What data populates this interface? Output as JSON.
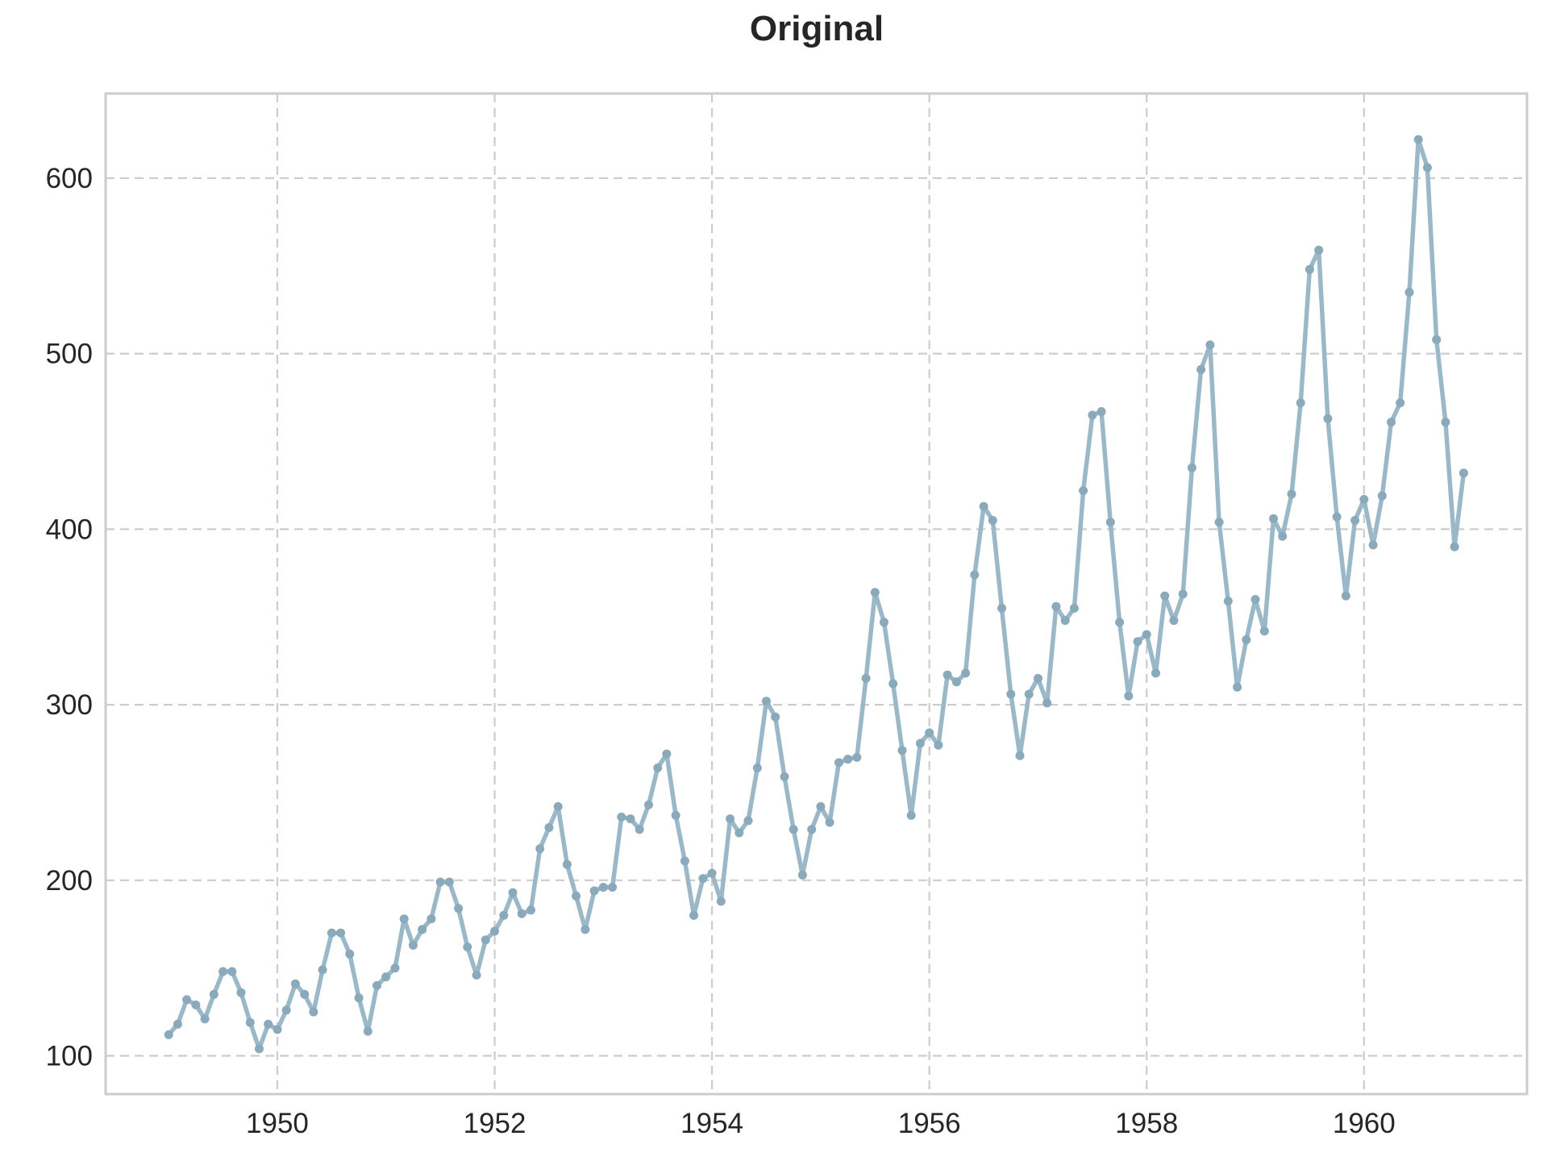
{
  "chart_data": {
    "type": "line",
    "title": "Original",
    "xlabel": "",
    "ylabel": "",
    "x_start": "1949-01",
    "x_frequency": "monthly",
    "xlim": [
      1948.42,
      1961.5
    ],
    "ylim": [
      78.2,
      648.2
    ],
    "x_ticks": [
      1950,
      1952,
      1954,
      1956,
      1958,
      1960
    ],
    "x_tick_labels": [
      "1950",
      "1952",
      "1954",
      "1956",
      "1958",
      "1960"
    ],
    "y_ticks": [
      100,
      200,
      300,
      400,
      500,
      600
    ],
    "y_tick_labels": [
      "100",
      "200",
      "300",
      "400",
      "500",
      "600"
    ],
    "grid": true,
    "legend": "none",
    "colors": {
      "line": "#9ab8c8",
      "marker": "#8aa9ba",
      "grid": "#cccccc",
      "frame": "#cccccc",
      "text": "#262626"
    },
    "series": [
      {
        "values": [
          112,
          118,
          132,
          129,
          121,
          135,
          148,
          148,
          136,
          119,
          104,
          118,
          115,
          126,
          141,
          135,
          125,
          149,
          170,
          170,
          158,
          133,
          114,
          140,
          145,
          150,
          178,
          163,
          172,
          178,
          199,
          199,
          184,
          162,
          146,
          166,
          171,
          180,
          193,
          181,
          183,
          218,
          230,
          242,
          209,
          191,
          172,
          194,
          196,
          196,
          236,
          235,
          229,
          243,
          264,
          272,
          237,
          211,
          180,
          201,
          204,
          188,
          235,
          227,
          234,
          264,
          302,
          293,
          259,
          229,
          203,
          229,
          242,
          233,
          267,
          269,
          270,
          315,
          364,
          347,
          312,
          274,
          237,
          278,
          284,
          277,
          317,
          313,
          318,
          374,
          413,
          405,
          355,
          306,
          271,
          306,
          315,
          301,
          356,
          348,
          355,
          422,
          465,
          467,
          404,
          347,
          305,
          336,
          340,
          318,
          362,
          348,
          363,
          435,
          491,
          505,
          404,
          359,
          310,
          337,
          360,
          342,
          406,
          396,
          420,
          472,
          548,
          559,
          463,
          407,
          362,
          405,
          417,
          391,
          419,
          461,
          472,
          535,
          622,
          606,
          508,
          461,
          390,
          432
        ]
      }
    ]
  }
}
